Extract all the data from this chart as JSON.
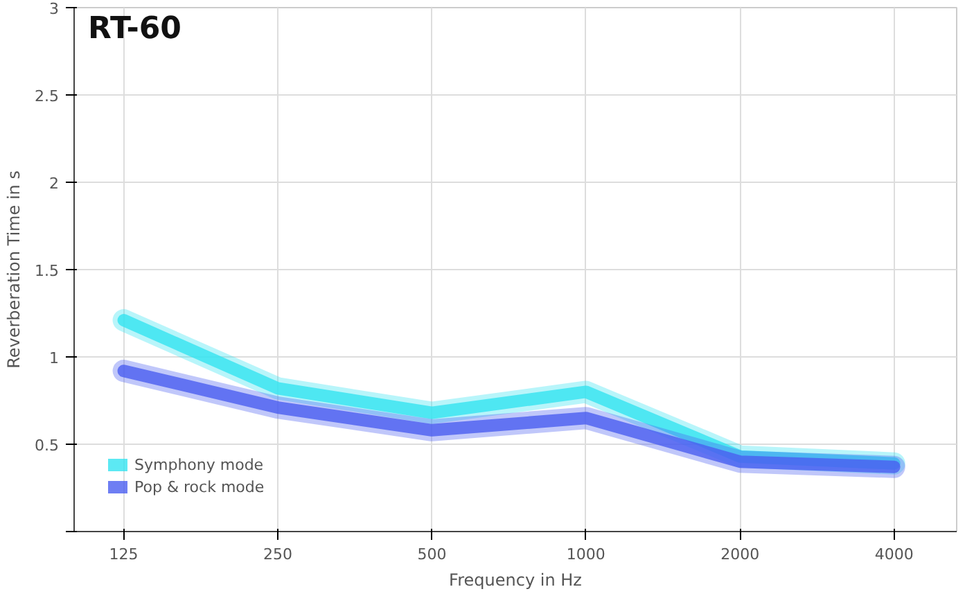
{
  "chart_data": {
    "type": "line",
    "title": "RT-60",
    "xlabel": "Frequency in Hz",
    "ylabel": "Reverberation Time in s",
    "x": [
      125,
      250,
      500,
      1000,
      2000,
      4000
    ],
    "series": [
      {
        "name": "Symphony mode",
        "color": "#33e3f0",
        "values": [
          1.21,
          0.82,
          0.68,
          0.8,
          0.43,
          0.39
        ]
      },
      {
        "name": "Pop & rock mode",
        "color": "#4a5ef0",
        "values": [
          0.92,
          0.71,
          0.58,
          0.65,
          0.4,
          0.37
        ]
      }
    ],
    "log": "x",
    "xlim": [
      100,
      5300
    ],
    "xticks": [
      125,
      250,
      500,
      1000,
      2000,
      4000
    ],
    "ylim": [
      0,
      3
    ],
    "yticks": [
      {
        "value": 0,
        "label": null
      },
      0.5,
      1,
      1.5,
      2,
      2.5,
      3
    ],
    "grid": true,
    "legend": "bottom left",
    "line_style": "solid",
    "marker": "none"
  }
}
